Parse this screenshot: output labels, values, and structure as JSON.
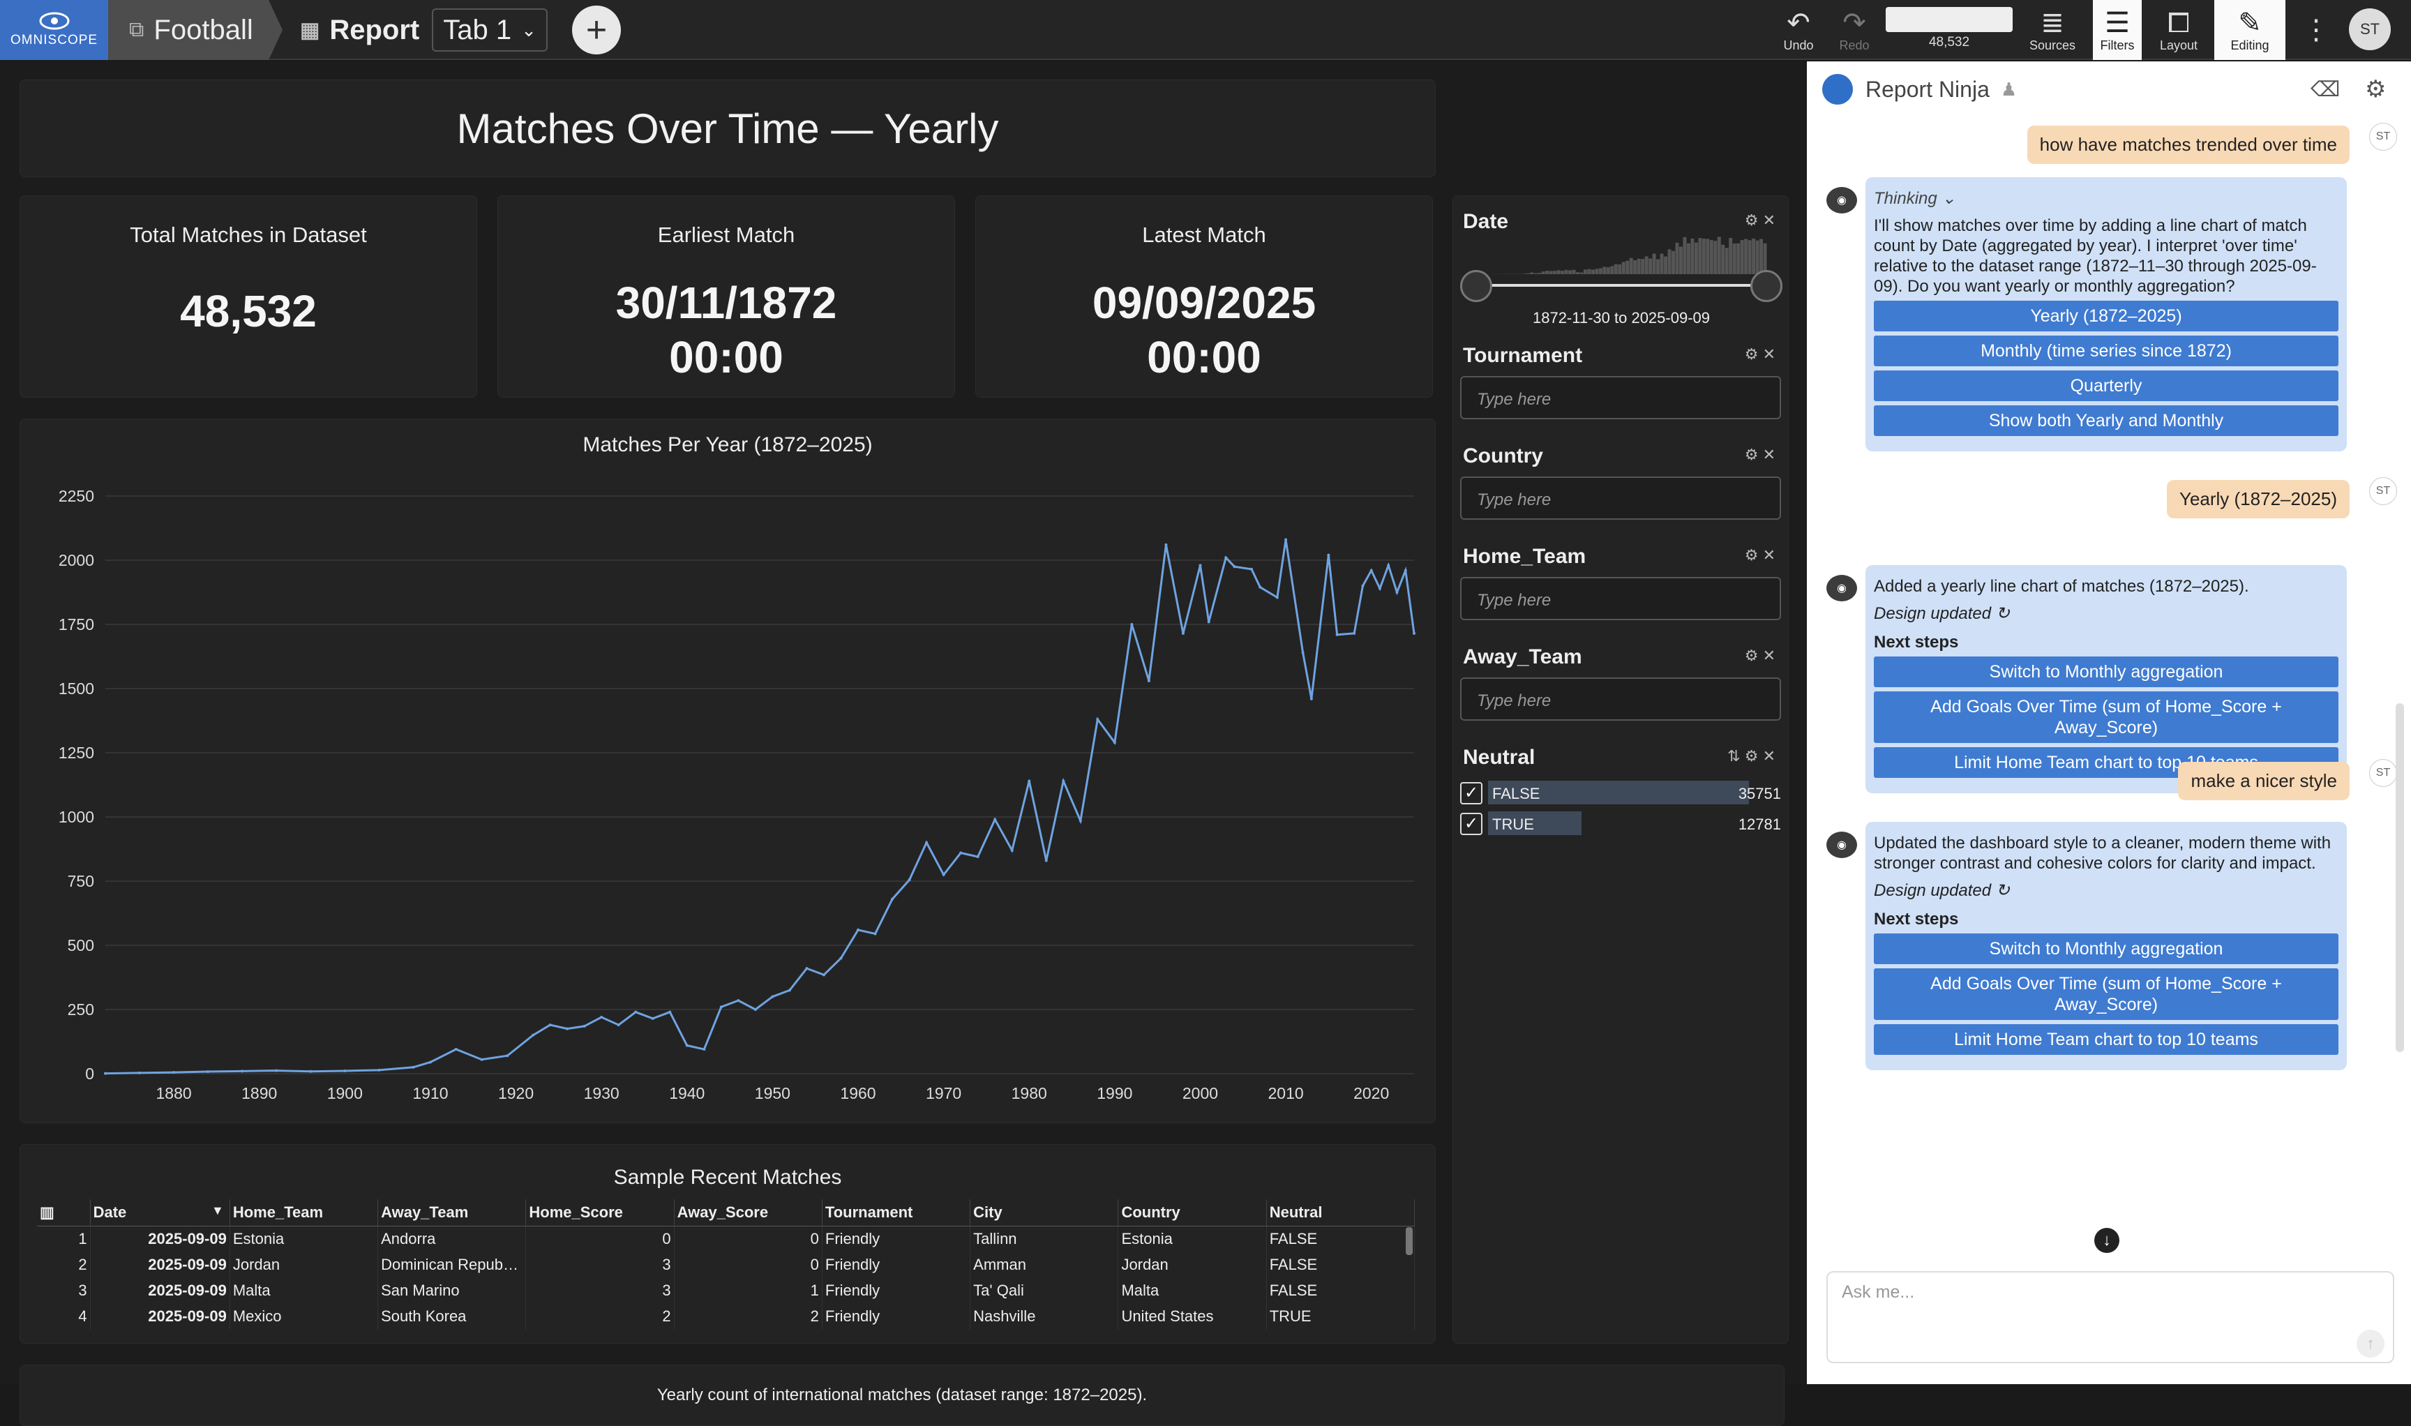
{
  "topbar": {
    "logo": "OMNISCOPE",
    "project": "Football",
    "report": "Report",
    "tab": "Tab 1",
    "tools": {
      "undo": "Undo",
      "redo": "Redo",
      "counter": "48,532",
      "sources": "Sources",
      "filters": "Filters",
      "layout": "Layout",
      "editing": "Editing"
    },
    "avatar": "ST"
  },
  "report": {
    "title": "Matches Over Time — Yearly",
    "kpis": [
      {
        "label": "Total Matches in Dataset",
        "value": "48,532"
      },
      {
        "label": "Earliest Match",
        "value": "30/11/1872",
        "value2": "00:00"
      },
      {
        "label": "Latest Match",
        "value": "09/09/2025",
        "value2": "00:00"
      }
    ],
    "footer": "Yearly count of international matches (dataset range: 1872–2025)."
  },
  "filters": {
    "date": {
      "label": "Date",
      "range": "1872-11-30 to 2025-09-09"
    },
    "tournament": {
      "label": "Tournament",
      "placeholder": "Type here"
    },
    "country": {
      "label": "Country",
      "placeholder": "Type here"
    },
    "home_team": {
      "label": "Home_Team",
      "placeholder": "Type here"
    },
    "away_team": {
      "label": "Away_Team",
      "placeholder": "Type here"
    },
    "neutral": {
      "label": "Neutral",
      "items": [
        {
          "label": "FALSE",
          "count": "35751",
          "fraction": 1.0
        },
        {
          "label": "TRUE",
          "count": "12781",
          "fraction": 0.357
        }
      ]
    }
  },
  "table": {
    "title": "Sample Recent Matches",
    "columns": [
      "Date",
      "Home_Team",
      "Away_Team",
      "Home_Score",
      "Away_Score",
      "Tournament",
      "City",
      "Country",
      "Neutral"
    ],
    "rows": [
      [
        "1",
        "2025-09-09",
        "Estonia",
        "Andorra",
        "0",
        "0",
        "Friendly",
        "Tallinn",
        "Estonia",
        "FALSE"
      ],
      [
        "2",
        "2025-09-09",
        "Jordan",
        "Dominican Repub…",
        "3",
        "0",
        "Friendly",
        "Amman",
        "Jordan",
        "FALSE"
      ],
      [
        "3",
        "2025-09-09",
        "Malta",
        "San Marino",
        "3",
        "1",
        "Friendly",
        "Ta' Qali",
        "Malta",
        "FALSE"
      ],
      [
        "4",
        "2025-09-09",
        "Mexico",
        "South Korea",
        "2",
        "2",
        "Friendly",
        "Nashville",
        "United States",
        "TRUE"
      ]
    ]
  },
  "chat": {
    "title": "Report Ninja",
    "user_avatar": "ST",
    "messages": [
      {
        "role": "user",
        "text": "how have matches trended over time"
      },
      {
        "role": "bot",
        "thinking": "Thinking",
        "text": "I'll show matches over time by adding a line chart of match count by Date (aggregated by year). I interpret 'over time' relative to the dataset range (1872–11–30 through 2025-09-09). Do you want yearly or monthly aggregation?",
        "chips": [
          "Yearly (1872–2025)",
          "Monthly (time series since 1872)",
          "Quarterly",
          "Show both Yearly and Monthly"
        ]
      },
      {
        "role": "user",
        "text": "Yearly (1872–2025)"
      },
      {
        "role": "bot",
        "text": "Added a yearly line chart of matches (1872–2025).",
        "status": "Design updated",
        "next": "Next steps",
        "chips": [
          "Switch to Monthly aggregation",
          "Add Goals Over Time (sum of Home_Score + Away_Score)",
          "Limit Home Team chart to top 10 teams"
        ]
      },
      {
        "role": "user",
        "text": "make a nicer style"
      },
      {
        "role": "bot",
        "text": "Updated the dashboard style to a cleaner, modern theme with stronger contrast and cohesive colors for clarity and impact.",
        "status": "Design updated",
        "next": "Next steps",
        "chips": [
          "Switch to Monthly aggregation",
          "Add Goals Over Time (sum of Home_Score + Away_Score)",
          "Limit Home Team chart to top 10 teams"
        ]
      }
    ],
    "input_placeholder": "Ask me..."
  },
  "chart_data": {
    "type": "line",
    "title": "Matches Per Year (1872–2025)",
    "xlabel": "",
    "ylabel": "",
    "xlim": [
      1872,
      2025
    ],
    "ylim": [
      0,
      2250
    ],
    "xticks": [
      1880,
      1890,
      1900,
      1910,
      1920,
      1930,
      1940,
      1950,
      1960,
      1970,
      1980,
      1990,
      2000,
      2010,
      2020
    ],
    "yticks": [
      0,
      250,
      500,
      750,
      1000,
      1250,
      1500,
      1750,
      2000,
      2250
    ],
    "grid": true,
    "color": "#6fa3e0",
    "x": [
      1872,
      1876,
      1880,
      1884,
      1888,
      1892,
      1896,
      1900,
      1904,
      1908,
      1910,
      1913,
      1916,
      1919,
      1922,
      1924,
      1926,
      1928,
      1930,
      1932,
      1934,
      1936,
      1938,
      1940,
      1942,
      1944,
      1946,
      1948,
      1950,
      1952,
      1954,
      1956,
      1958,
      1960,
      1962,
      1964,
      1966,
      1968,
      1970,
      1972,
      1974,
      1976,
      1978,
      1980,
      1982,
      1984,
      1986,
      1988,
      1990,
      1992,
      1994,
      1996,
      1998,
      2000,
      2001,
      2003,
      2004,
      2006,
      2007,
      2009,
      2010,
      2012,
      2013,
      2015,
      2016,
      2018,
      2019,
      2020,
      2021,
      2022,
      2023,
      2024,
      2025
    ],
    "y": [
      1,
      3,
      5,
      8,
      10,
      12,
      9,
      11,
      14,
      25,
      45,
      95,
      55,
      70,
      150,
      190,
      175,
      185,
      220,
      190,
      240,
      215,
      240,
      110,
      95,
      260,
      285,
      250,
      300,
      325,
      410,
      385,
      450,
      560,
      545,
      680,
      755,
      900,
      775,
      860,
      845,
      990,
      870,
      1140,
      830,
      1140,
      985,
      1380,
      1290,
      1750,
      1530,
      2060,
      1715,
      1980,
      1760,
      2010,
      1975,
      1965,
      1895,
      1855,
      2080,
      1640,
      1460,
      2020,
      1710,
      1715,
      1900,
      1960,
      1890,
      1980,
      1875,
      1960,
      1715
    ]
  }
}
